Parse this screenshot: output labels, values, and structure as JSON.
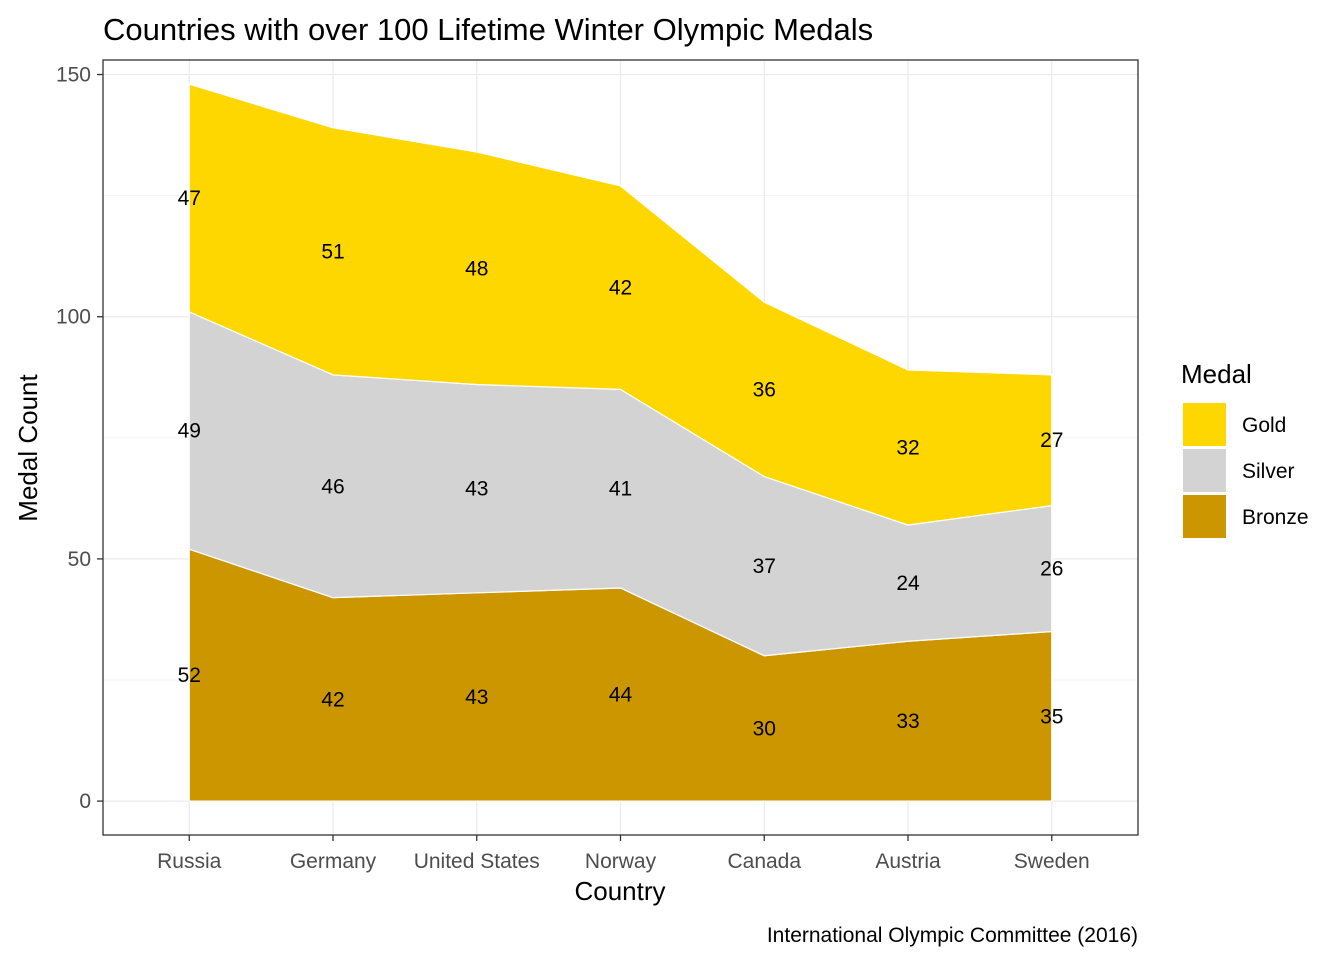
{
  "chart_data": {
    "type": "area",
    "stacked": true,
    "title": "Countries with over 100 Lifetime Winter Olympic Medals",
    "xlabel": "Country",
    "ylabel": "Medal Count",
    "caption": "International Olympic Committee (2016)",
    "categories": [
      "Russia",
      "Germany",
      "United States",
      "Norway",
      "Canada",
      "Austria",
      "Sweden"
    ],
    "ylim": [
      -7,
      153
    ],
    "yticks": [
      0,
      50,
      100,
      150
    ],
    "grid": true,
    "legend": {
      "title": "Medal",
      "position": "right"
    },
    "series": [
      {
        "name": "Gold",
        "color": "#FFD700",
        "values": [
          47,
          51,
          48,
          42,
          36,
          32,
          27
        ]
      },
      {
        "name": "Silver",
        "color": "#D3D3D3",
        "values": [
          49,
          46,
          43,
          41,
          37,
          24,
          26
        ]
      },
      {
        "name": "Bronze",
        "color": "#CC9600",
        "values": [
          52,
          42,
          43,
          44,
          30,
          33,
          35
        ]
      }
    ]
  }
}
